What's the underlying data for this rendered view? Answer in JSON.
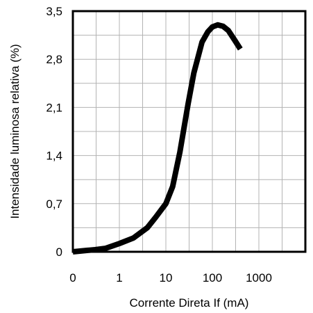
{
  "chart_data": {
    "type": "line",
    "title": "",
    "xlabel": "Corrente Direta If (mA)",
    "ylabel": "Intensidade luminosa relativa (%)",
    "x_scale": "log",
    "xlim": [
      0.1,
      10000
    ],
    "ylim": [
      0,
      3.5
    ],
    "x_tick_labels": [
      "0",
      "1",
      "10",
      "100",
      "1000"
    ],
    "y_tick_labels": [
      "3,5",
      "2,8",
      "2,1",
      "1,4",
      "0,7",
      "0"
    ],
    "grid": true,
    "legend": "none",
    "series": [
      {
        "x": [
          0.1,
          0.2,
          0.3,
          0.5,
          1,
          2,
          4,
          6,
          10,
          14,
          20,
          30,
          40,
          60,
          80,
          100,
          130,
          170,
          220,
          300,
          400
        ],
        "y": [
          0.0,
          0.02,
          0.03,
          0.05,
          0.12,
          0.2,
          0.35,
          0.5,
          0.7,
          0.95,
          1.45,
          2.15,
          2.6,
          3.05,
          3.2,
          3.27,
          3.3,
          3.28,
          3.22,
          3.08,
          2.95
        ],
        "color": "#000000"
      }
    ]
  }
}
